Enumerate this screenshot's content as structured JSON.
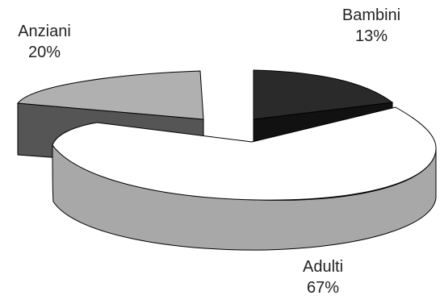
{
  "chart_data": {
    "type": "pie",
    "style": "3d-exploded",
    "title": "",
    "slices": [
      {
        "label": "Bambini",
        "value": 13,
        "percent_label": "13%",
        "color": "#2a2a2a"
      },
      {
        "label": "Adulti",
        "value": 67,
        "percent_label": "67%",
        "color": "#ffffff"
      },
      {
        "label": "Anziani",
        "value": 20,
        "percent_label": "20%",
        "color": "#b0b0b0"
      }
    ],
    "side_colors": {
      "Bambini": "#111111",
      "Adulti": "#a8a8a8",
      "Anziani": "#555555"
    }
  }
}
